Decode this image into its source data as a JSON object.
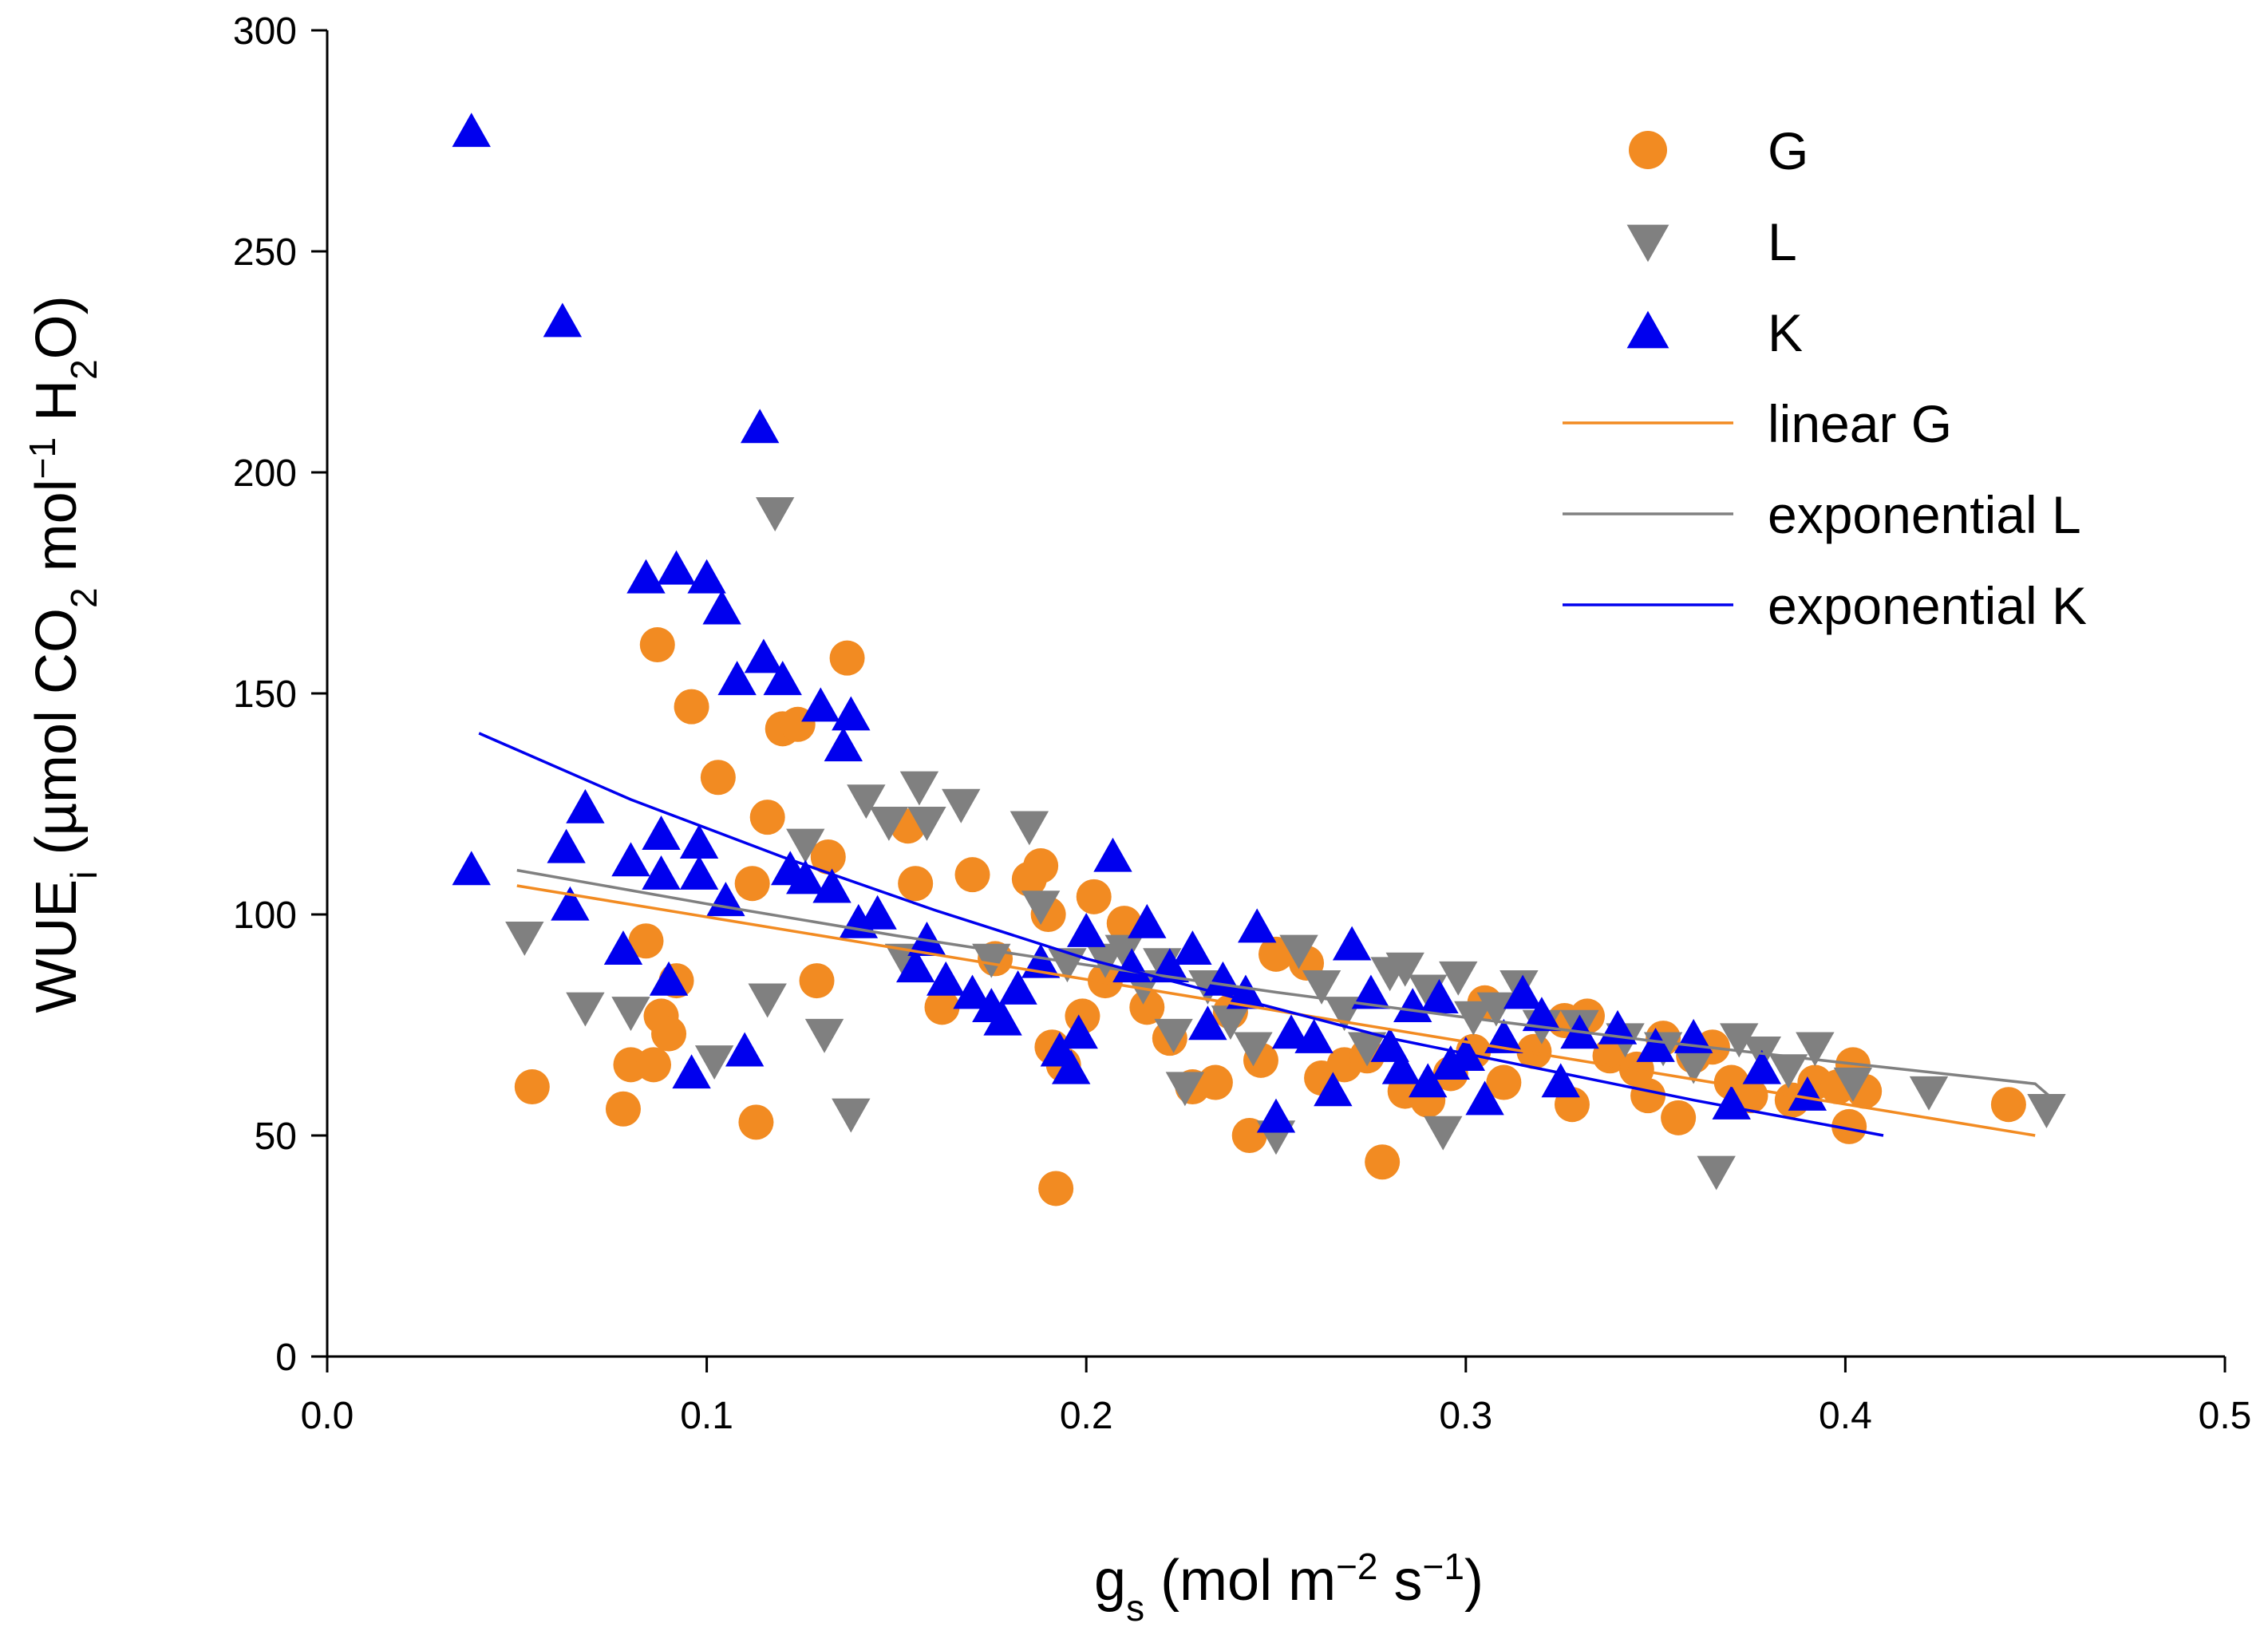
{
  "chart_data": {
    "type": "scatter",
    "xlabel": "g_s (mol m^-2 s^-1)",
    "ylabel": "WUE_i (µmol CO_2 mol^-1 H_2O)",
    "xlim": [
      0.0,
      0.5
    ],
    "ylim": [
      0,
      300
    ],
    "x_ticks": [
      "0.0",
      "0.1",
      "0.2",
      "0.3",
      "0.4",
      "0.5"
    ],
    "y_ticks": [
      "0",
      "50",
      "100",
      "150",
      "200",
      "250",
      "300"
    ],
    "legend_position": "top-right",
    "colors": {
      "G": "#f28b22",
      "L": "#808080",
      "K": "#0000ee"
    },
    "series": [
      {
        "name": "G",
        "marker": "circle",
        "points": [
          [
            0.054,
            61
          ],
          [
            0.078,
            56
          ],
          [
            0.08,
            66
          ],
          [
            0.084,
            94
          ],
          [
            0.086,
            66
          ],
          [
            0.087,
            161
          ],
          [
            0.088,
            77
          ],
          [
            0.09,
            73
          ],
          [
            0.092,
            85
          ],
          [
            0.096,
            147
          ],
          [
            0.103,
            131
          ],
          [
            0.112,
            107
          ],
          [
            0.113,
            53
          ],
          [
            0.116,
            122
          ],
          [
            0.12,
            142
          ],
          [
            0.124,
            143
          ],
          [
            0.129,
            85
          ],
          [
            0.132,
            113
          ],
          [
            0.137,
            158
          ],
          [
            0.153,
            120
          ],
          [
            0.155,
            107
          ],
          [
            0.162,
            79
          ],
          [
            0.17,
            109
          ],
          [
            0.176,
            90
          ],
          [
            0.185,
            108
          ],
          [
            0.188,
            111
          ],
          [
            0.19,
            100
          ],
          [
            0.191,
            70
          ],
          [
            0.192,
            38
          ],
          [
            0.194,
            66
          ],
          [
            0.199,
            77
          ],
          [
            0.202,
            104
          ],
          [
            0.205,
            85
          ],
          [
            0.21,
            98
          ],
          [
            0.216,
            79
          ],
          [
            0.222,
            72
          ],
          [
            0.228,
            61
          ],
          [
            0.234,
            62
          ],
          [
            0.238,
            78
          ],
          [
            0.243,
            50
          ],
          [
            0.246,
            67
          ],
          [
            0.25,
            91
          ],
          [
            0.258,
            89
          ],
          [
            0.262,
            63
          ],
          [
            0.268,
            66
          ],
          [
            0.274,
            68
          ],
          [
            0.278,
            44
          ],
          [
            0.284,
            60
          ],
          [
            0.29,
            58
          ],
          [
            0.296,
            64
          ],
          [
            0.302,
            69
          ],
          [
            0.305,
            80
          ],
          [
            0.31,
            62
          ],
          [
            0.318,
            69
          ],
          [
            0.326,
            76
          ],
          [
            0.328,
            57
          ],
          [
            0.332,
            77
          ],
          [
            0.338,
            68
          ],
          [
            0.345,
            65
          ],
          [
            0.348,
            59
          ],
          [
            0.352,
            72
          ],
          [
            0.356,
            54
          ],
          [
            0.36,
            68
          ],
          [
            0.365,
            70
          ],
          [
            0.37,
            62
          ],
          [
            0.375,
            59
          ],
          [
            0.386,
            58
          ],
          [
            0.392,
            62
          ],
          [
            0.398,
            61
          ],
          [
            0.401,
            52
          ],
          [
            0.402,
            66
          ],
          [
            0.405,
            60
          ],
          [
            0.443,
            57
          ]
        ]
      },
      {
        "name": "L",
        "marker": "triangle-down",
        "points": [
          [
            0.052,
            95
          ],
          [
            0.068,
            79
          ],
          [
            0.08,
            78
          ],
          [
            0.102,
            67
          ],
          [
            0.116,
            81
          ],
          [
            0.118,
            191
          ],
          [
            0.126,
            116
          ],
          [
            0.131,
            73
          ],
          [
            0.138,
            55
          ],
          [
            0.142,
            126
          ],
          [
            0.148,
            121
          ],
          [
            0.152,
            90
          ],
          [
            0.156,
            129
          ],
          [
            0.158,
            121
          ],
          [
            0.167,
            125
          ],
          [
            0.175,
            90
          ],
          [
            0.185,
            120
          ],
          [
            0.188,
            102
          ],
          [
            0.195,
            89
          ],
          [
            0.205,
            90
          ],
          [
            0.21,
            92
          ],
          [
            0.215,
            84
          ],
          [
            0.22,
            89
          ],
          [
            0.223,
            73
          ],
          [
            0.226,
            61
          ],
          [
            0.232,
            84
          ],
          [
            0.238,
            76
          ],
          [
            0.244,
            70
          ],
          [
            0.25,
            50
          ],
          [
            0.256,
            92
          ],
          [
            0.262,
            84
          ],
          [
            0.268,
            78
          ],
          [
            0.274,
            70
          ],
          [
            0.28,
            87
          ],
          [
            0.284,
            88
          ],
          [
            0.29,
            83
          ],
          [
            0.294,
            51
          ],
          [
            0.298,
            86
          ],
          [
            0.302,
            77
          ],
          [
            0.308,
            79
          ],
          [
            0.314,
            84
          ],
          [
            0.32,
            75
          ],
          [
            0.33,
            75
          ],
          [
            0.342,
            72
          ],
          [
            0.352,
            70
          ],
          [
            0.36,
            66
          ],
          [
            0.366,
            42
          ],
          [
            0.372,
            72
          ],
          [
            0.378,
            69
          ],
          [
            0.385,
            65
          ],
          [
            0.392,
            70
          ],
          [
            0.402,
            62
          ],
          [
            0.422,
            60
          ],
          [
            0.453,
            56
          ]
        ]
      },
      {
        "name": "K",
        "marker": "triangle-up",
        "points": [
          [
            0.038,
            277
          ],
          [
            0.038,
            110
          ],
          [
            0.062,
            234
          ],
          [
            0.063,
            115
          ],
          [
            0.064,
            102
          ],
          [
            0.068,
            124
          ],
          [
            0.078,
            92
          ],
          [
            0.08,
            112
          ],
          [
            0.084,
            176
          ],
          [
            0.088,
            109
          ],
          [
            0.088,
            118
          ],
          [
            0.09,
            85
          ],
          [
            0.092,
            178
          ],
          [
            0.096,
            64
          ],
          [
            0.098,
            109
          ],
          [
            0.098,
            116
          ],
          [
            0.1,
            176
          ],
          [
            0.104,
            169
          ],
          [
            0.105,
            103
          ],
          [
            0.108,
            153
          ],
          [
            0.11,
            69
          ],
          [
            0.114,
            210
          ],
          [
            0.115,
            158
          ],
          [
            0.12,
            153
          ],
          [
            0.122,
            110
          ],
          [
            0.126,
            108
          ],
          [
            0.13,
            147
          ],
          [
            0.133,
            106
          ],
          [
            0.136,
            138
          ],
          [
            0.138,
            145
          ],
          [
            0.14,
            98
          ],
          [
            0.145,
            100
          ],
          [
            0.155,
            88
          ],
          [
            0.158,
            94
          ],
          [
            0.163,
            85
          ],
          [
            0.17,
            82
          ],
          [
            0.175,
            79
          ],
          [
            0.178,
            76
          ],
          [
            0.182,
            83
          ],
          [
            0.188,
            89
          ],
          [
            0.193,
            69
          ],
          [
            0.196,
            65
          ],
          [
            0.198,
            73
          ],
          [
            0.2,
            96
          ],
          [
            0.207,
            113
          ],
          [
            0.212,
            88
          ],
          [
            0.216,
            98
          ],
          [
            0.222,
            88
          ],
          [
            0.228,
            92
          ],
          [
            0.232,
            75
          ],
          [
            0.236,
            85
          ],
          [
            0.242,
            82
          ],
          [
            0.245,
            97
          ],
          [
            0.25,
            54
          ],
          [
            0.254,
            73
          ],
          [
            0.26,
            72
          ],
          [
            0.265,
            60
          ],
          [
            0.27,
            93
          ],
          [
            0.275,
            82
          ],
          [
            0.28,
            70
          ],
          [
            0.283,
            65
          ],
          [
            0.286,
            79
          ],
          [
            0.29,
            62
          ],
          [
            0.293,
            81
          ],
          [
            0.296,
            66
          ],
          [
            0.3,
            68
          ],
          [
            0.305,
            58
          ],
          [
            0.31,
            72
          ],
          [
            0.315,
            82
          ],
          [
            0.32,
            77
          ],
          [
            0.325,
            62
          ],
          [
            0.33,
            73
          ],
          [
            0.34,
            74
          ],
          [
            0.35,
            70
          ],
          [
            0.36,
            72
          ],
          [
            0.37,
            57
          ],
          [
            0.378,
            65
          ],
          [
            0.39,
            59
          ]
        ]
      },
      {
        "name": "linear G",
        "type": "line",
        "points": [
          [
            0.05,
            106.5
          ],
          [
            0.45,
            50.0
          ]
        ]
      },
      {
        "name": "exponential L",
        "type": "line",
        "points": [
          [
            0.05,
            110.0
          ],
          [
            0.1,
            102.4
          ],
          [
            0.15,
            95.2
          ],
          [
            0.2,
            88.6
          ],
          [
            0.25,
            82.4
          ],
          [
            0.3,
            76.7
          ],
          [
            0.35,
            71.3
          ],
          [
            0.4,
            66.4
          ],
          [
            0.45,
            61.7
          ],
          [
            0.455,
            58.0
          ]
        ]
      },
      {
        "name": "exponential K",
        "type": "line",
        "points": [
          [
            0.04,
            141
          ],
          [
            0.08,
            126
          ],
          [
            0.12,
            113
          ],
          [
            0.16,
            101
          ],
          [
            0.2,
            90
          ],
          [
            0.24,
            81
          ],
          [
            0.28,
            72
          ],
          [
            0.32,
            65
          ],
          [
            0.36,
            58
          ],
          [
            0.41,
            50
          ]
        ]
      }
    ],
    "legend": [
      {
        "label": "G",
        "kind": "circle",
        "color": "#f28b22"
      },
      {
        "label": "L",
        "kind": "triangle-down",
        "color": "#808080"
      },
      {
        "label": "K",
        "kind": "triangle-up",
        "color": "#0000ee"
      },
      {
        "label": "linear G",
        "kind": "line",
        "color": "#f28b22"
      },
      {
        "label": "exponential L",
        "kind": "line",
        "color": "#808080"
      },
      {
        "label": "exponential K",
        "kind": "line",
        "color": "#0000ee"
      }
    ]
  }
}
